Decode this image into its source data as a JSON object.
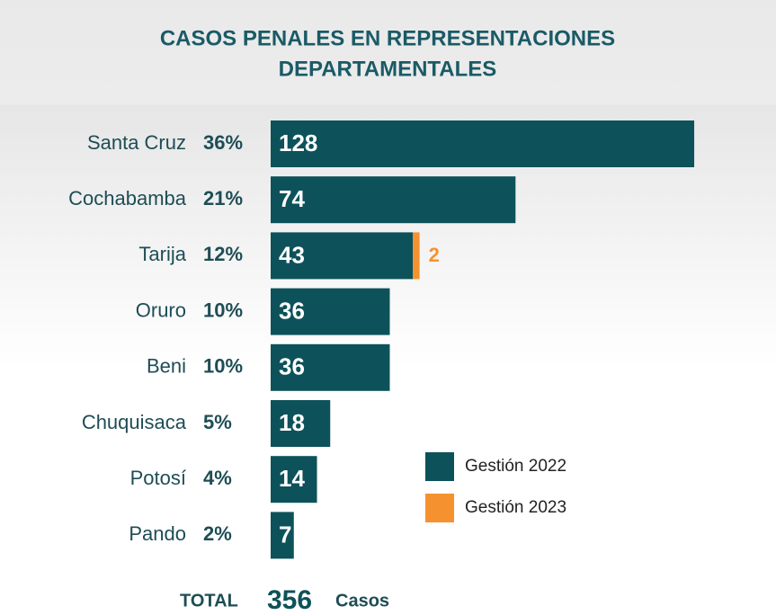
{
  "chart_data": {
    "type": "bar",
    "orientation": "horizontal",
    "stacked": true,
    "title": [
      "CASOS PENALES EN REPRESENTACIONES",
      "DEPARTAMENTALES"
    ],
    "categories": [
      "Santa Cruz",
      "Cochabamba",
      "Tarija",
      "Oruro",
      "Beni",
      "Chuquisaca",
      "Potosí",
      "Pando"
    ],
    "percentages": [
      {
        "value": 36,
        "label": "36%"
      },
      {
        "value": 21,
        "label": "21%"
      },
      {
        "value": 12,
        "label": "12%"
      },
      {
        "value": 10,
        "label": "10%"
      },
      {
        "value": 10,
        "label": "10%"
      },
      {
        "value": 5,
        "label": "5%"
      },
      {
        "value": 4,
        "label": "4%"
      },
      {
        "value": 2,
        "label": "2%"
      }
    ],
    "series": [
      {
        "name": "Gestión 2022",
        "color": "#0d525a",
        "values": [
          128,
          74,
          43,
          36,
          36,
          18,
          14,
          7
        ]
      },
      {
        "name": "Gestión 2023",
        "color": "#f5922f",
        "values": [
          null,
          null,
          2,
          null,
          null,
          null,
          null,
          null
        ]
      }
    ],
    "total": {
      "label": "TOTAL",
      "value": 356,
      "unit": "Casos"
    }
  }
}
